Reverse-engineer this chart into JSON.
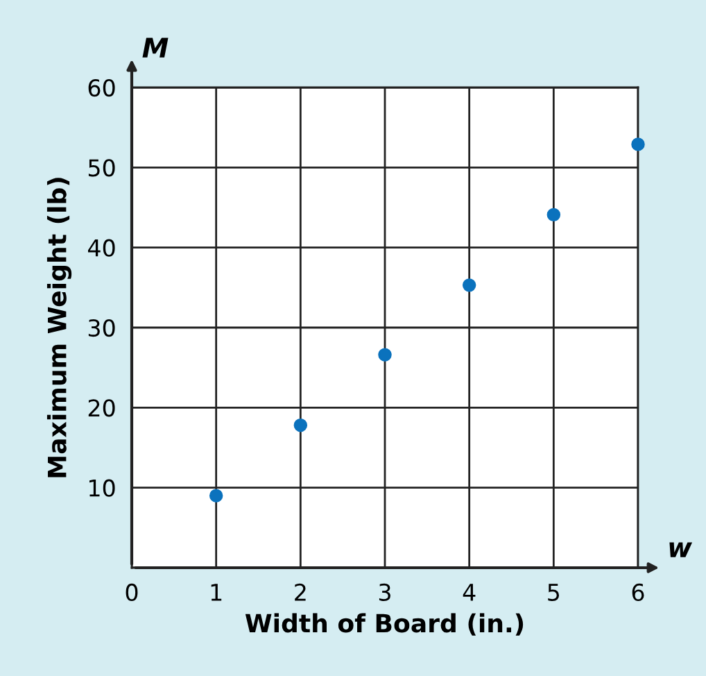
{
  "chart_data": {
    "type": "scatter",
    "xlabel": "Width of Board (in.)",
    "ylabel": "Maximum Weight (lb)",
    "x": [
      1,
      2,
      3,
      4,
      5,
      6
    ],
    "series": [
      {
        "color": "#0b72bd",
        "values": [
          9,
          17.8,
          26.6,
          35.3,
          44.1,
          52.9
        ]
      }
    ],
    "xlim": [
      0,
      6
    ],
    "ylim": [
      0,
      60
    ],
    "xticks": [
      0,
      1,
      2,
      3,
      4,
      5,
      6
    ],
    "yticks": [
      {
        "value": 0,
        "label": null
      },
      10,
      20,
      30,
      40,
      50,
      60
    ],
    "grid": true,
    "marker": "circle",
    "annotations": [
      "M",
      "w"
    ]
  }
}
